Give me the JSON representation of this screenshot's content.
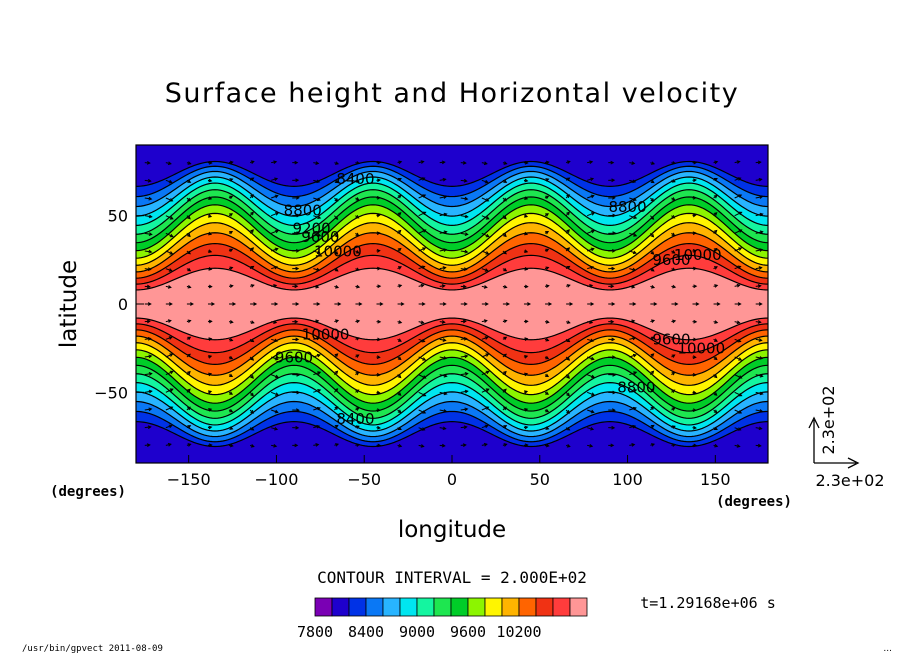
{
  "chart_data": {
    "type": "heatmap",
    "title": "Surface height and Horizontal velocity",
    "xlabel": "longitude",
    "ylabel": "latitude",
    "x_unit_label": "(degrees)",
    "y_unit_label": "(degrees)",
    "xlim": [
      -180,
      180
    ],
    "ylim": [
      -90,
      90
    ],
    "x_ticks": [
      -150,
      -100,
      -50,
      0,
      50,
      100,
      150
    ],
    "x_tick_labels": [
      "−150",
      "−100",
      "−50",
      "0",
      "50",
      "100",
      "150"
    ],
    "y_ticks": [
      50,
      0,
      -50
    ],
    "y_tick_labels": [
      "50",
      "0",
      "−50"
    ],
    "field": {
      "name": "surface height",
      "min": 7800,
      "max": 10400,
      "contour_interval": 200,
      "wave_number": 4,
      "wave_phase_deg": 45,
      "wave_amplitude_lat": 13
    },
    "contour_labels": [
      {
        "text": "8400",
        "lon": -55,
        "lat": 68
      },
      {
        "text": "8400",
        "lon": -55,
        "lat": -68
      },
      {
        "text": "8800",
        "lon": -85,
        "lat": 50
      },
      {
        "text": "9200",
        "lon": -80,
        "lat": 40
      },
      {
        "text": "9600",
        "lon": -75,
        "lat": 35
      },
      {
        "text": "10000",
        "lon": -65,
        "lat": 27
      },
      {
        "text": "9600",
        "lon": -90,
        "lat": -33
      },
      {
        "text": "10000",
        "lon": -72,
        "lat": -20
      },
      {
        "text": "8800",
        "lon": 100,
        "lat": 52
      },
      {
        "text": "9600",
        "lon": 125,
        "lat": 22
      },
      {
        "text": "10000",
        "lon": 140,
        "lat": 25
      },
      {
        "text": "8800",
        "lon": 105,
        "lat": -50
      },
      {
        "text": "9600",
        "lon": 125,
        "lat": -23
      },
      {
        "text": "10000",
        "lon": 142,
        "lat": -28
      }
    ],
    "vector_reference": {
      "x_label": "2.3e+02",
      "y_label": "2.3e+02"
    },
    "colorbar": {
      "colors": [
        "#7a00b4",
        "#1e00cd",
        "#0032e6",
        "#0a78f5",
        "#28b4ff",
        "#00e6f0",
        "#14f5a0",
        "#1ee650",
        "#00cd28",
        "#8cf500",
        "#fff500",
        "#ffb400",
        "#ff6400",
        "#f03214",
        "#ff3c3c",
        "#ff9696"
      ],
      "tick_labels": [
        "7800",
        "8400",
        "9000",
        "9600",
        "10200"
      ]
    },
    "contour_interval_text": "CONTOUR INTERVAL = 2.000E+02",
    "time_text": "t=1.29168e+06 s",
    "footer_left": "/usr/bin/gpvect  2011-08-09",
    "footer_right": "..."
  }
}
